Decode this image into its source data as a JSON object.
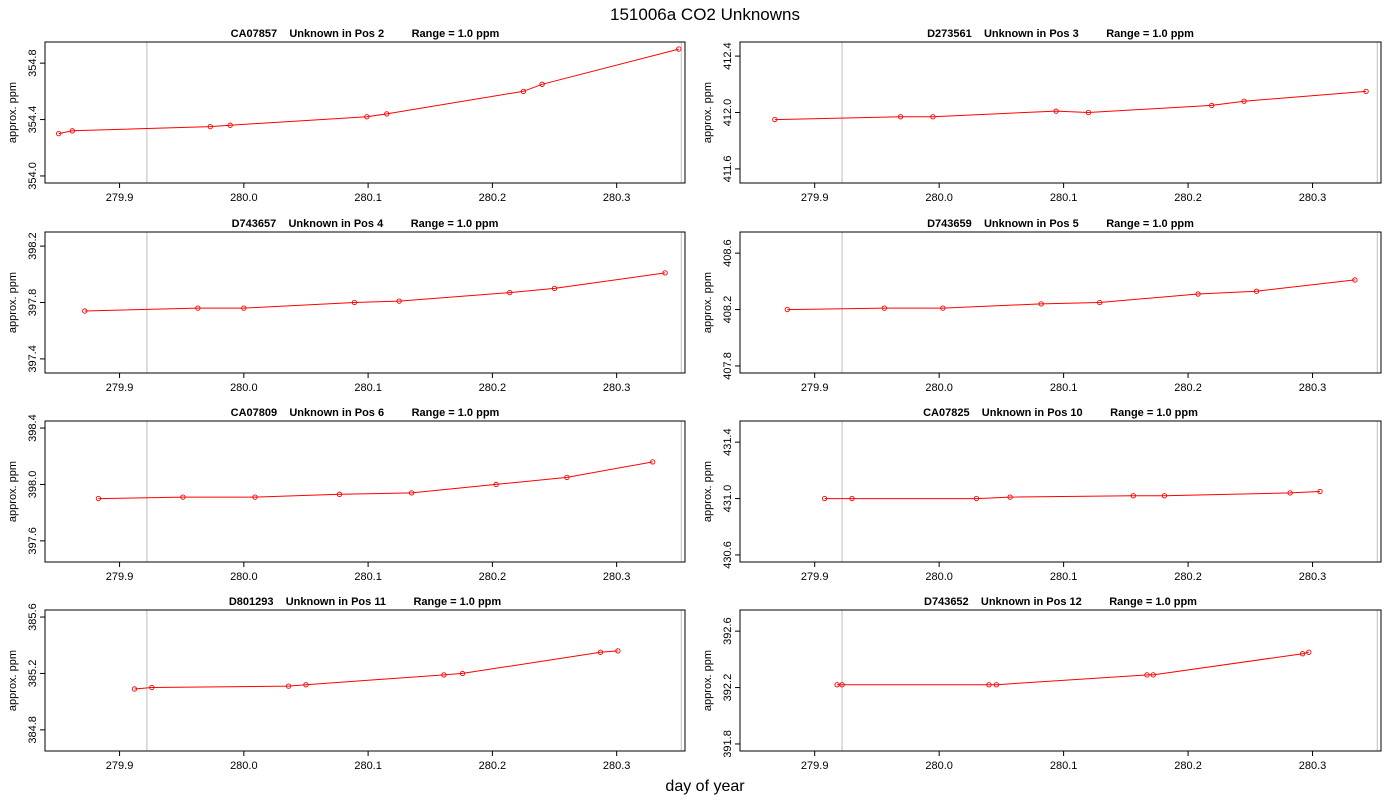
{
  "figure": {
    "title": "151006a  CO2 Unknowns",
    "xlabel": "day of year"
  },
  "chart_data": [
    {
      "type": "line",
      "title": "CA07857    Unknown in Pos 2         Range = 1.0 ppm",
      "xlabel": "",
      "ylabel": "approx. ppm",
      "xlim": [
        279.84,
        280.355
      ],
      "ylim": [
        353.95,
        354.95
      ],
      "xticks": [
        "279.9",
        "280.0",
        "280.1",
        "280.2",
        "280.3"
      ],
      "yticks": [
        "354.0",
        "354.4",
        "354.8"
      ],
      "vlines": [
        279.922,
        280.352
      ],
      "grid": false,
      "color": "#ff0000",
      "series": [
        {
          "x": [
            279.851,
            279.862,
            279.973,
            279.989,
            280.099,
            280.115,
            280.225,
            280.24,
            280.35
          ],
          "values": [
            354.3,
            354.32,
            354.35,
            354.36,
            354.42,
            354.44,
            354.6,
            354.65,
            354.9
          ]
        }
      ]
    },
    {
      "type": "line",
      "title": "D273561    Unknown in Pos 3         Range = 1.0 ppm",
      "xlabel": "",
      "ylabel": "approx. ppm",
      "xlim": [
        279.84,
        280.355
      ],
      "ylim": [
        411.5,
        412.5
      ],
      "xticks": [
        "279.9",
        "280.0",
        "280.1",
        "280.2",
        "280.3"
      ],
      "yticks": [
        "411.6",
        "412.0",
        "412.4"
      ],
      "vlines": [
        279.922,
        280.352
      ],
      "grid": false,
      "color": "#ff0000",
      "series": [
        {
          "x": [
            279.868,
            279.969,
            279.995,
            280.094,
            280.12,
            280.219,
            280.245,
            280.343
          ],
          "values": [
            411.95,
            411.97,
            411.97,
            412.01,
            412.0,
            412.05,
            412.08,
            412.15
          ]
        }
      ]
    },
    {
      "type": "line",
      "title": "D743657    Unknown in Pos 4         Range = 1.0 ppm",
      "xlabel": "",
      "ylabel": "approx. ppm",
      "xlim": [
        279.84,
        280.355
      ],
      "ylim": [
        397.3,
        398.3
      ],
      "xticks": [
        "279.9",
        "280.0",
        "280.1",
        "280.2",
        "280.3"
      ],
      "yticks": [
        "397.4",
        "397.8",
        "398.2"
      ],
      "vlines": [
        279.922,
        280.352
      ],
      "grid": false,
      "color": "#ff0000",
      "series": [
        {
          "x": [
            279.872,
            279.963,
            280.0,
            280.089,
            280.125,
            280.214,
            280.25,
            280.339
          ],
          "values": [
            397.74,
            397.76,
            397.76,
            397.8,
            397.81,
            397.87,
            397.9,
            398.01
          ]
        }
      ]
    },
    {
      "type": "line",
      "title": "D743659    Unknown in Pos 5         Range = 1.0 ppm",
      "xlabel": "",
      "ylabel": "approx. ppm",
      "xlim": [
        279.84,
        280.355
      ],
      "ylim": [
        407.75,
        408.75
      ],
      "xticks": [
        "279.9",
        "280.0",
        "280.1",
        "280.2",
        "280.3"
      ],
      "yticks": [
        "407.8",
        "408.2",
        "408.6"
      ],
      "vlines": [
        279.922,
        280.352
      ],
      "grid": false,
      "color": "#ff0000",
      "series": [
        {
          "x": [
            279.878,
            279.956,
            280.003,
            280.082,
            280.129,
            280.208,
            280.255,
            280.334
          ],
          "values": [
            408.2,
            408.21,
            408.21,
            408.24,
            408.25,
            408.31,
            408.33,
            408.41
          ]
        }
      ]
    },
    {
      "type": "line",
      "title": "CA07809    Unknown in Pos 6         Range = 1.0 ppm",
      "xlabel": "",
      "ylabel": "approx. ppm",
      "xlim": [
        279.84,
        280.355
      ],
      "ylim": [
        397.45,
        398.45
      ],
      "xticks": [
        "279.9",
        "280.0",
        "280.1",
        "280.2",
        "280.3"
      ],
      "yticks": [
        "397.6",
        "398.0",
        "398.4"
      ],
      "vlines": [
        279.922,
        280.352
      ],
      "grid": false,
      "color": "#ff0000",
      "series": [
        {
          "x": [
            279.883,
            279.951,
            280.009,
            280.077,
            280.135,
            280.203,
            280.26,
            280.329
          ],
          "values": [
            397.9,
            397.91,
            397.91,
            397.93,
            397.94,
            398.0,
            398.05,
            398.16
          ]
        }
      ]
    },
    {
      "type": "line",
      "title": "CA07825    Unknown in Pos 10         Range = 1.0 ppm",
      "xlabel": "",
      "ylabel": "approx. ppm",
      "xlim": [
        279.84,
        280.355
      ],
      "ylim": [
        430.55,
        431.55
      ],
      "xticks": [
        "279.9",
        "280.0",
        "280.1",
        "280.2",
        "280.3"
      ],
      "yticks": [
        "430.6",
        "431.0",
        "431.4"
      ],
      "vlines": [
        279.922,
        280.352
      ],
      "grid": false,
      "color": "#ff0000",
      "series": [
        {
          "x": [
            279.908,
            279.93,
            280.03,
            280.057,
            280.156,
            280.181,
            280.282,
            280.306
          ],
          "values": [
            431.0,
            431.0,
            431.0,
            431.01,
            431.02,
            431.02,
            431.04,
            431.05
          ]
        }
      ]
    },
    {
      "type": "line",
      "title": "D801293    Unknown in Pos 11         Range = 1.0 ppm",
      "xlabel": "",
      "ylabel": "approx. ppm",
      "xlim": [
        279.84,
        280.355
      ],
      "ylim": [
        384.65,
        385.65
      ],
      "xticks": [
        "279.9",
        "280.0",
        "280.1",
        "280.2",
        "280.3"
      ],
      "yticks": [
        "384.8",
        "385.2",
        "385.6"
      ],
      "vlines": [
        279.922,
        280.352
      ],
      "grid": false,
      "color": "#ff0000",
      "series": [
        {
          "x": [
            279.912,
            279.926,
            280.036,
            280.05,
            280.161,
            280.176,
            280.287,
            280.301
          ],
          "values": [
            385.09,
            385.1,
            385.11,
            385.12,
            385.19,
            385.2,
            385.35,
            385.36
          ]
        }
      ]
    },
    {
      "type": "line",
      "title": "D743652    Unknown in Pos 12         Range = 1.0 ppm",
      "xlabel": "",
      "ylabel": "approx. ppm",
      "xlim": [
        279.84,
        280.355
      ],
      "ylim": [
        391.75,
        392.75
      ],
      "xticks": [
        "279.9",
        "280.0",
        "280.1",
        "280.2",
        "280.3"
      ],
      "yticks": [
        "391.8",
        "392.2",
        "392.6"
      ],
      "vlines": [
        279.922,
        280.352
      ],
      "grid": false,
      "color": "#ff0000",
      "series": [
        {
          "x": [
            279.918,
            279.922,
            280.04,
            280.046,
            280.167,
            280.172,
            280.292,
            280.297
          ],
          "values": [
            392.22,
            392.22,
            392.22,
            392.22,
            392.29,
            392.29,
            392.44,
            392.45
          ]
        }
      ]
    }
  ]
}
